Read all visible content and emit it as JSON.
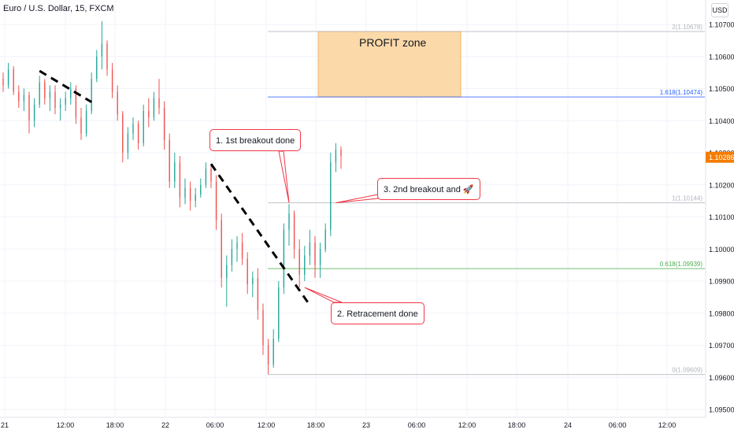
{
  "header": {
    "symbol_title": "Euro / U.S. Dollar, 15, FXCM",
    "currency_button": "USD"
  },
  "chart_data": {
    "type": "candlestick",
    "symbol": "EURUSD",
    "interval": "15",
    "source": "FXCM",
    "currency": "USD",
    "ylim": [
      1.0945,
      1.1075
    ],
    "y_ticks": [
      "1.10700",
      "1.10600",
      "1.10500",
      "1.10400",
      "1.10300",
      "1.10200",
      "1.10100",
      "1.10000",
      "1.09900",
      "1.09800",
      "1.09700",
      "1.09600",
      "1.09500"
    ],
    "x_ticks": [
      "21",
      "12:00",
      "18:00",
      "22",
      "06:00",
      "12:00",
      "18:00",
      "23",
      "06:00",
      "12:00",
      "18:00",
      "24",
      "06:00",
      "12:00"
    ],
    "last_price": {
      "value": 1.10286,
      "label": "1.10286",
      "color": "#f57c00"
    },
    "fib_levels": [
      {
        "level": "2",
        "value": 1.10678,
        "label": "2(1.10678)",
        "color": "#b2b5be"
      },
      {
        "level": "1.618",
        "value": 1.10474,
        "label": "1.618(1.10474)",
        "color": "#2962ff"
      },
      {
        "level": "1",
        "value": 1.10144,
        "label": "1(1.10144)",
        "color": "#b2b5be"
      },
      {
        "level": "0.618",
        "value": 1.09939,
        "label": "0.618(1.09939)",
        "color": "#4caf50"
      },
      {
        "level": "0",
        "value": 1.09609,
        "label": "0(1.09609)",
        "color": "#b2b5be"
      }
    ],
    "profit_zone": {
      "label": "PROFIT zone",
      "y_top": 1.10678,
      "y_bottom": 1.10474,
      "color": "#fcd9a8"
    },
    "trendlines": [
      {
        "name": "trendline-1",
        "from": {
          "bar": 7,
          "price": 1.10555
        },
        "to": {
          "bar": 17,
          "price": 1.10458
        }
      },
      {
        "name": "trendline-2",
        "from": {
          "bar": 40,
          "price": 1.10265
        },
        "to": {
          "bar": 59,
          "price": 1.09825
        }
      }
    ],
    "annotations": [
      {
        "name": "annotation-1st-breakout",
        "text": "1. 1st breakout done",
        "target_bar": 55,
        "target_price": 1.10144
      },
      {
        "name": "annotation-retracement",
        "text": "2. Retracement done",
        "target_bar": 58,
        "target_price": 1.0988
      },
      {
        "name": "annotation-2nd-breakout",
        "text": "3. 2nd breakout and 🚀",
        "target_bar": 64,
        "target_price": 1.10144
      }
    ],
    "colors": {
      "up": "#26a69a",
      "down": "#ef5350",
      "grid": "#f0f3fa"
    },
    "candles": [
      [
        1.1053,
        1.1055,
        1.1049,
        1.1051
      ],
      [
        1.1051,
        1.1058,
        1.105,
        1.1056
      ],
      [
        1.1056,
        1.1057,
        1.1048,
        1.1049
      ],
      [
        1.1049,
        1.1051,
        1.1044,
        1.1046
      ],
      [
        1.1046,
        1.105,
        1.1043,
        1.1048
      ],
      [
        1.1048,
        1.1049,
        1.1036,
        1.104
      ],
      [
        1.104,
        1.1047,
        1.1038,
        1.1045
      ],
      [
        1.1045,
        1.1054,
        1.1044,
        1.1052
      ],
      [
        1.1052,
        1.1053,
        1.1045,
        1.1047
      ],
      [
        1.1047,
        1.1051,
        1.1043,
        1.1049
      ],
      [
        1.1049,
        1.1051,
        1.1042,
        1.1044
      ],
      [
        1.1044,
        1.1047,
        1.104,
        1.1045
      ],
      [
        1.1045,
        1.1049,
        1.1043,
        1.1047
      ],
      [
        1.1047,
        1.1052,
        1.1045,
        1.105
      ],
      [
        1.105,
        1.1051,
        1.1039,
        1.1041
      ],
      [
        1.1041,
        1.1044,
        1.1034,
        1.1036
      ],
      [
        1.1036,
        1.1045,
        1.1035,
        1.1043
      ],
      [
        1.1043,
        1.1055,
        1.1042,
        1.1053
      ],
      [
        1.1053,
        1.1062,
        1.1052,
        1.106
      ],
      [
        1.106,
        1.1071,
        1.1056,
        1.1064
      ],
      [
        1.1064,
        1.1065,
        1.1054,
        1.1056
      ],
      [
        1.1056,
        1.1058,
        1.1047,
        1.1049
      ],
      [
        1.1049,
        1.1051,
        1.104,
        1.1042
      ],
      [
        1.1042,
        1.1043,
        1.1027,
        1.103
      ],
      [
        1.103,
        1.1038,
        1.1028,
        1.1036
      ],
      [
        1.1036,
        1.1041,
        1.1034,
        1.1039
      ],
      [
        1.1039,
        1.104,
        1.1031,
        1.1033
      ],
      [
        1.1033,
        1.1045,
        1.1032,
        1.1043
      ],
      [
        1.1043,
        1.1047,
        1.1038,
        1.1041
      ],
      [
        1.1041,
        1.1049,
        1.104,
        1.1047
      ],
      [
        1.1047,
        1.1053,
        1.1042,
        1.1044
      ],
      [
        1.1044,
        1.1046,
        1.1031,
        1.1034
      ],
      [
        1.1034,
        1.1036,
        1.1019,
        1.1021
      ],
      [
        1.1021,
        1.103,
        1.1019,
        1.1027
      ],
      [
        1.1027,
        1.1029,
        1.1013,
        1.1016
      ],
      [
        1.1016,
        1.1022,
        1.1014,
        1.1019
      ],
      [
        1.1019,
        1.1021,
        1.1012,
        1.1015
      ],
      [
        1.1015,
        1.1019,
        1.1013,
        1.1017
      ],
      [
        1.1017,
        1.1022,
        1.1016,
        1.102
      ],
      [
        1.102,
        1.1027,
        1.1019,
        1.1025
      ],
      [
        1.1025,
        1.1026,
        1.1019,
        1.1021
      ],
      [
        1.1021,
        1.1023,
        1.1006,
        1.1009
      ],
      [
        1.1009,
        1.1011,
        1.0988,
        1.0991
      ],
      [
        1.0991,
        1.0998,
        1.0982,
        1.0995
      ],
      [
        1.0995,
        1.1003,
        1.0993,
        1.1
      ],
      [
        1.1,
        1.1004,
        1.0996,
        1.1002
      ],
      [
        1.1002,
        1.1005,
        1.0995,
        1.0997
      ],
      [
        1.0997,
        1.0999,
        1.0986,
        1.0989
      ],
      [
        1.0989,
        1.0993,
        1.0985,
        1.0991
      ],
      [
        1.0991,
        1.0994,
        1.0978,
        1.0981
      ],
      [
        1.0981,
        1.0983,
        1.0967,
        1.097
      ],
      [
        1.097,
        1.0972,
        1.0961,
        1.0964
      ],
      [
        1.0964,
        1.0975,
        1.0963,
        1.0972
      ],
      [
        1.0972,
        1.099,
        1.0971,
        1.0988
      ],
      [
        1.0988,
        1.1008,
        1.0986,
        1.1006
      ],
      [
        1.1006,
        1.1014,
        1.1001,
        1.1011
      ],
      [
        1.1011,
        1.1012,
        1.0997,
        1.1
      ],
      [
        1.1,
        1.1003,
        1.0988,
        1.0992
      ],
      [
        1.0992,
        1.1001,
        1.099,
        1.0998
      ],
      [
        1.0998,
        1.1006,
        1.0995,
        1.1002
      ],
      [
        1.1002,
        1.1004,
        1.0991,
        1.0995
      ],
      [
        1.0995,
        1.1002,
        1.0991,
        1.1
      ],
      [
        1.1,
        1.1008,
        1.0999,
        1.1006
      ],
      [
        1.1006,
        1.103,
        1.1004,
        1.1027
      ],
      [
        1.1027,
        1.1033,
        1.1024,
        1.1031
      ],
      [
        1.1031,
        1.1032,
        1.1025,
        1.1029
      ]
    ]
  }
}
